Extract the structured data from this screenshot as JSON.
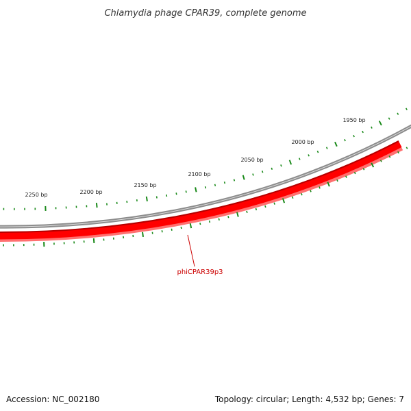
{
  "title": "Chlamydia phage CPAR39, complete genome",
  "footer": {
    "accession": "Accession: NC_002180",
    "summary": "Topology: circular; Length: 4,532 bp; Genes: 7"
  },
  "genome": {
    "length_bp": 4532,
    "topology": "circular",
    "genes_count": 7
  },
  "ticks": {
    "labels": [
      "1950 bp",
      "2000 bp",
      "2050 bp",
      "2100 bp",
      "2150 bp",
      "2200 bp",
      "2250 bp"
    ]
  },
  "genes": [
    {
      "name": "phiCPAR39p3",
      "strand": "reverse",
      "color": "#ff0000"
    }
  ],
  "colors": {
    "backbone": "#8c8c8c",
    "tick": "#1a8a1a",
    "gene": "#ff0000",
    "gene_dark": "#b40000",
    "gene_light": "#ff6666",
    "gene_label": "#cc0000"
  }
}
